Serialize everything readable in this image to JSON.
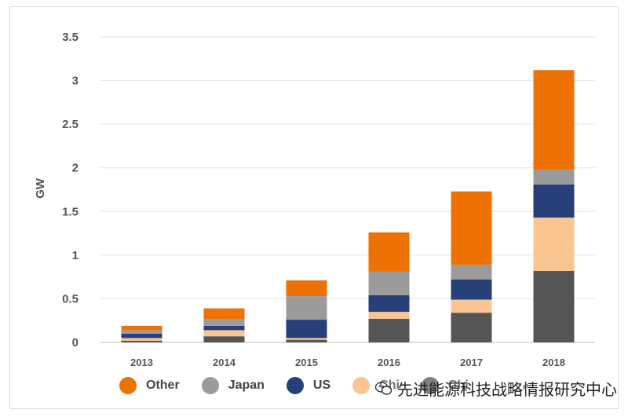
{
  "chart_data": {
    "type": "bar",
    "stacked": true,
    "categories": [
      "2013",
      "2014",
      "2015",
      "2016",
      "2017",
      "2018"
    ],
    "ylabel": "GW",
    "xlabel": "",
    "ylim": [
      0,
      3.5
    ],
    "yticks": [
      "0",
      "0.5",
      "1",
      "1.5",
      "2",
      "2.5",
      "3",
      "3.5"
    ],
    "grid": true,
    "legend_position": "bottom",
    "series": [
      {
        "name": "China",
        "color": "#555555",
        "values": [
          0.02,
          0.07,
          0.03,
          0.27,
          0.34,
          0.82
        ]
      },
      {
        "name": "China",
        "color": "#FAC590",
        "values": [
          0.03,
          0.07,
          0.02,
          0.08,
          0.15,
          0.61
        ]
      },
      {
        "name": "US",
        "color": "#27407A",
        "values": [
          0.05,
          0.05,
          0.21,
          0.19,
          0.23,
          0.38
        ]
      },
      {
        "name": "Japan",
        "color": "#9B9B9B",
        "values": [
          0.04,
          0.08,
          0.27,
          0.27,
          0.17,
          0.17
        ]
      },
      {
        "name": "Other",
        "color": "#EE7202",
        "values": [
          0.05,
          0.12,
          0.18,
          0.45,
          0.84,
          1.14
        ]
      }
    ]
  },
  "legend": {
    "items": [
      {
        "label": "Other",
        "color": "#EE7202"
      },
      {
        "label": "Japan",
        "color": "#9B9B9B"
      },
      {
        "label": "US",
        "color": "#27407A"
      },
      {
        "label": "Chi",
        "color": "#FAC590"
      },
      {
        "label": "Chi",
        "color": "#555555"
      }
    ]
  },
  "watermark": {
    "text": "先进能源科技战略情报研究中心"
  }
}
